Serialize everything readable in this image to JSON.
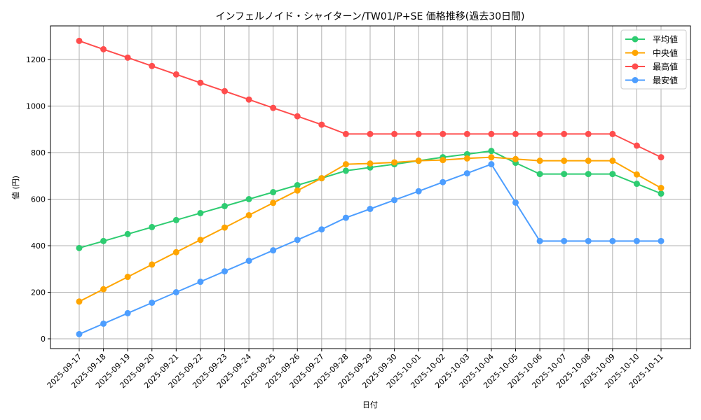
{
  "chart_data": {
    "type": "line",
    "title": "インフェルノイド・シャイターン/TW01/P+SE 価格推移(過去30日間)",
    "xlabel": "日付",
    "ylabel": "値 (円)",
    "ylim": [
      -40,
      1340
    ],
    "yticks": [
      0,
      200,
      400,
      600,
      800,
      1000,
      1200
    ],
    "grid": true,
    "legend_position": "upper right",
    "x": [
      "2025-09-17",
      "2025-09-18",
      "2025-09-19",
      "2025-09-20",
      "2025-09-21",
      "2025-09-22",
      "2025-09-23",
      "2025-09-24",
      "2025-09-25",
      "2025-09-26",
      "2025-09-27",
      "2025-09-28",
      "2025-09-29",
      "2025-09-30",
      "2025-10-01",
      "2025-10-02",
      "2025-10-03",
      "2025-10-04",
      "2025-10-05",
      "2025-10-06",
      "2025-10-07",
      "2025-10-08",
      "2025-10-09",
      "2025-10-10",
      "2025-10-11"
    ],
    "series": [
      {
        "name": "平均値",
        "color": "#2ecc71",
        "values": [
          390,
          420,
          450,
          480,
          510,
          540,
          570,
          600,
          630,
          660,
          690,
          722,
          736,
          750,
          765,
          780,
          793,
          807,
          756,
          708,
          708,
          708,
          708,
          666,
          624
        ]
      },
      {
        "name": "中央値",
        "color": "#ffa500",
        "values": [
          160,
          213,
          266,
          319,
          372,
          425,
          478,
          531,
          584,
          637,
          690,
          750,
          753,
          758,
          765,
          768,
          775,
          780,
          772,
          765,
          765,
          765,
          765,
          706,
          648
        ]
      },
      {
        "name": "最高値",
        "color": "#ff4d4d",
        "values": [
          1280,
          1244,
          1208,
          1172,
          1136,
          1100,
          1064,
          1028,
          992,
          956,
          920,
          880,
          880,
          880,
          880,
          880,
          880,
          880,
          880,
          880,
          880,
          880,
          880,
          830,
          780
        ]
      },
      {
        "name": "最安値",
        "color": "#4d9eff",
        "values": [
          20,
          65,
          110,
          155,
          200,
          245,
          290,
          335,
          380,
          425,
          470,
          520,
          558,
          596,
          634,
          673,
          711,
          750,
          585,
          420,
          420,
          420,
          420,
          420,
          420
        ]
      }
    ]
  }
}
